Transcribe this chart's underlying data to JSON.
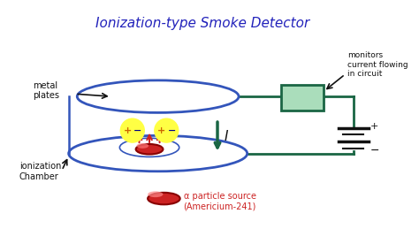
{
  "title": "Ionization-type Smoke Detector",
  "title_color": "#2222bb",
  "title_fontsize": 11,
  "bg_color": "#ffffff",
  "blue": "#3355bb",
  "green": "#1a6644",
  "red": "#cc2222",
  "dark": "#111111",
  "label_metal_plates": "metal\nplates",
  "label_ionization": "ionization\nChamber",
  "label_monitors": "monitors\ncurrent flowing\nin circuit",
  "label_alpha": "α particle source\n(Americium-241)",
  "label_current": "I",
  "figsize": [
    4.74,
    2.76
  ],
  "dpi": 100
}
